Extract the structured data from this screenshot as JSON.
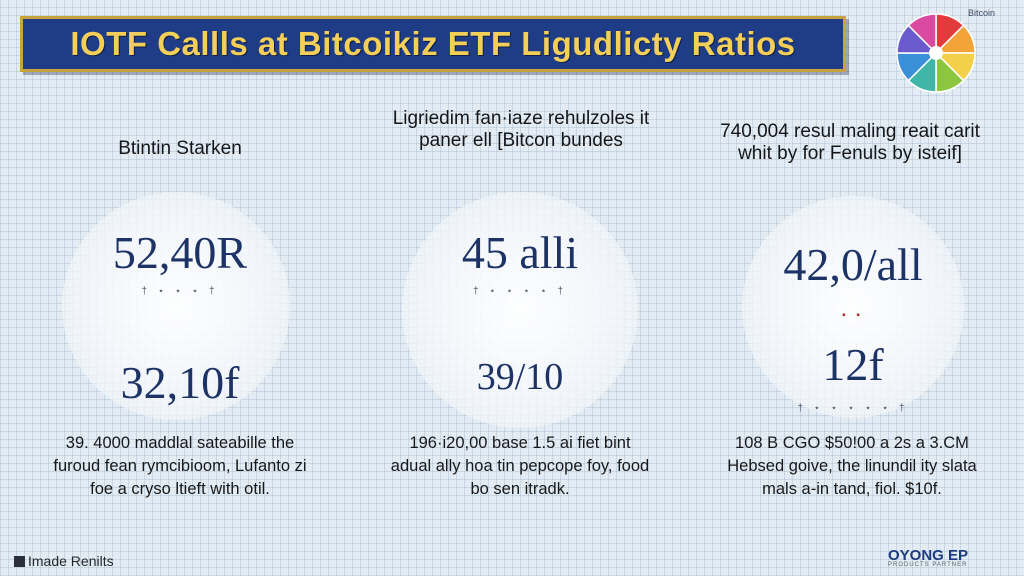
{
  "header": {
    "title": "IOTF Callls at Bitcoikiz ETF Ligudlicty Ratios",
    "corner_label": "Bitcoin"
  },
  "columns": [
    {
      "heading": "Btintin Starken",
      "value_top": "52,40R",
      "value_bottom": "32,10f",
      "description": "39. 4000 maddlal sateabille the furoud fean rymcibioom, Lufanto zi foe a cryso ltieft with otil."
    },
    {
      "heading": "Ligriedim fan·iaze rehulzoles it paner ell [Bitcon bundes",
      "value_top": "45 alli",
      "value_bottom": "39/10",
      "description": "196·i20,00 base 1.5 ai fiet bint adual ally hoa tin pepcope foy, food bo sen itradk."
    },
    {
      "heading": "740,004 resul maling reait carit whit by for Fenuls by isteif]",
      "value_top": "42,0/all",
      "value_bottom": "12f",
      "description": "108 B CGO $50!00 a 2s a 3.CM Hebsed goive, the linundil ity slata mals a-in tand, fiol. $10f."
    }
  ],
  "footer": {
    "left_label": "Imade Renilts",
    "brand": "OYONG EP",
    "brand_sub": "PRODUCTS PARTNER"
  },
  "colors": {
    "banner_bg": "#1e3d86",
    "banner_text": "#f3cf5a",
    "value_text": "#1d3365",
    "pie": [
      "#e23b3b",
      "#f2a33a",
      "#f2d04a",
      "#8cc63f",
      "#3fb6a8",
      "#3b8fd9",
      "#6a5acd",
      "#d94aa0"
    ]
  }
}
